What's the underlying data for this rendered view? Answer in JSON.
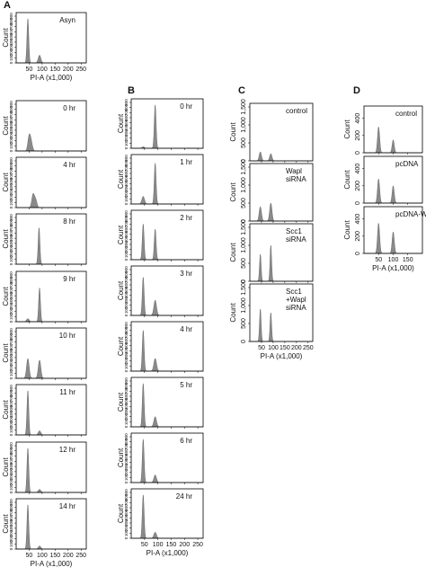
{
  "chart_data": [
    {
      "type": "density",
      "panel": "A",
      "xlabel": "PI-A (x1,000)",
      "ylabel": "Count",
      "xlim": [
        0,
        270
      ],
      "xticks": [
        50,
        100,
        150,
        200,
        250
      ],
      "ylim": [
        0,
        900
      ],
      "yticks": [
        0,
        100,
        200,
        300,
        400,
        500,
        600,
        700,
        800,
        900
      ],
      "plots": [
        {
          "label": [
            "Asyn"
          ],
          "peaks": [
            {
              "x": 45,
              "height": 850
            },
            {
              "x": 90,
              "height": 150
            }
          ]
        },
        {
          "label": [
            "0 hr"
          ],
          "peaks": [
            {
              "x": 50,
              "height": 280
            },
            {
              "x": 58,
              "height": 150
            }
          ]
        },
        {
          "label": [
            "4 hr"
          ],
          "peaks": [
            {
              "x": 65,
              "height": 250
            },
            {
              "x": 75,
              "height": 150
            }
          ]
        },
        {
          "label": [
            "8 hr"
          ],
          "peaks": [
            {
              "x": 88,
              "height": 700
            }
          ]
        },
        {
          "label": [
            "9 hr"
          ],
          "peaks": [
            {
              "x": 90,
              "height": 650
            },
            {
              "x": 45,
              "height": 60
            }
          ]
        },
        {
          "label": [
            "10 hr"
          ],
          "peaks": [
            {
              "x": 45,
              "height": 380
            },
            {
              "x": 90,
              "height": 350
            }
          ]
        },
        {
          "label": [
            "11 hr"
          ],
          "peaks": [
            {
              "x": 45,
              "height": 850
            },
            {
              "x": 90,
              "height": 80
            }
          ]
        },
        {
          "label": [
            "12 hr"
          ],
          "peaks": [
            {
              "x": 45,
              "height": 850
            },
            {
              "x": 90,
              "height": 60
            }
          ]
        },
        {
          "label": [
            "14 hr"
          ],
          "peaks": [
            {
              "x": 45,
              "height": 850
            },
            {
              "x": 90,
              "height": 60
            }
          ]
        }
      ]
    },
    {
      "type": "density",
      "panel": "B",
      "xlabel": "PI-A (x1,000)",
      "ylabel": "Count",
      "xlim": [
        0,
        270
      ],
      "xticks": [
        50,
        100,
        150,
        200,
        250
      ],
      "ylim": [
        0,
        900
      ],
      "yticks": [
        0,
        100,
        200,
        300,
        400,
        500,
        600,
        700,
        800,
        900
      ],
      "plots": [
        {
          "label": [
            "0 hr"
          ],
          "peaks": [
            {
              "x": 90,
              "height": 850
            },
            {
              "x": 45,
              "height": 30
            }
          ]
        },
        {
          "label": [
            "1 hr"
          ],
          "peaks": [
            {
              "x": 90,
              "height": 800
            },
            {
              "x": 45,
              "height": 150
            }
          ]
        },
        {
          "label": [
            "2 hr"
          ],
          "peaks": [
            {
              "x": 45,
              "height": 700
            },
            {
              "x": 90,
              "height": 600
            }
          ]
        },
        {
          "label": [
            "3 hr"
          ],
          "peaks": [
            {
              "x": 45,
              "height": 750
            },
            {
              "x": 90,
              "height": 300
            }
          ]
        },
        {
          "label": [
            "4 hr"
          ],
          "peaks": [
            {
              "x": 45,
              "height": 800
            },
            {
              "x": 90,
              "height": 250
            }
          ]
        },
        {
          "label": [
            "5 hr"
          ],
          "peaks": [
            {
              "x": 45,
              "height": 850
            },
            {
              "x": 90,
              "height": 200
            }
          ]
        },
        {
          "label": [
            "6 hr"
          ],
          "peaks": [
            {
              "x": 45,
              "height": 850
            },
            {
              "x": 90,
              "height": 150
            }
          ]
        },
        {
          "label": [
            "24 hr"
          ],
          "peaks": [
            {
              "x": 45,
              "height": 850
            },
            {
              "x": 90,
              "height": 120
            }
          ]
        }
      ]
    },
    {
      "type": "density",
      "panel": "C",
      "xlabel": "PI-A (x1,000)",
      "ylabel": "Count",
      "xlim": [
        0,
        270
      ],
      "xticks": [
        50,
        100,
        150,
        200,
        250
      ],
      "ylim": [
        0,
        1500
      ],
      "yticks": [
        0,
        500,
        {
          "value": 1000,
          "label": "1,000"
        },
        {
          "value": 1500,
          "label": "1,500"
        }
      ],
      "plots": [
        {
          "label": [
            "control"
          ],
          "peaks": [
            {
              "x": 45,
              "height": 250
            },
            {
              "x": 90,
              "height": 200
            }
          ]
        },
        {
          "label": [
            "Wapl",
            "siRNA"
          ],
          "peaks": [
            {
              "x": 45,
              "height": 400
            },
            {
              "x": 90,
              "height": 500
            }
          ]
        },
        {
          "label": [
            "Scc1",
            "siRNA"
          ],
          "peaks": [
            {
              "x": 45,
              "height": 750
            },
            {
              "x": 90,
              "height": 1000
            }
          ]
        },
        {
          "label": [
            "Scc1",
            "+Wapl",
            "siRNA"
          ],
          "peaks": [
            {
              "x": 45,
              "height": 900
            },
            {
              "x": 90,
              "height": 800
            }
          ]
        }
      ]
    },
    {
      "type": "density",
      "panel": "D",
      "xlabel": "PI-A (x1,000)",
      "ylabel": "Count",
      "xlim": [
        0,
        200
      ],
      "xticks": [
        50,
        100,
        150
      ],
      "ylim": [
        0,
        500
      ],
      "yticks": [
        0,
        200,
        400
      ],
      "plots": [
        {
          "label": [
            "control"
          ],
          "peaks": [
            {
              "x": 50,
              "height": 300
            },
            {
              "x": 100,
              "height": 150
            }
          ]
        },
        {
          "label": [
            "pcDNA"
          ],
          "peaks": [
            {
              "x": 50,
              "height": 280
            },
            {
              "x": 100,
              "height": 200
            }
          ]
        },
        {
          "label": [
            "pcDNA-Wapl"
          ],
          "peaks": [
            {
              "x": 50,
              "height": 350
            },
            {
              "x": 100,
              "height": 250
            }
          ]
        }
      ]
    }
  ]
}
